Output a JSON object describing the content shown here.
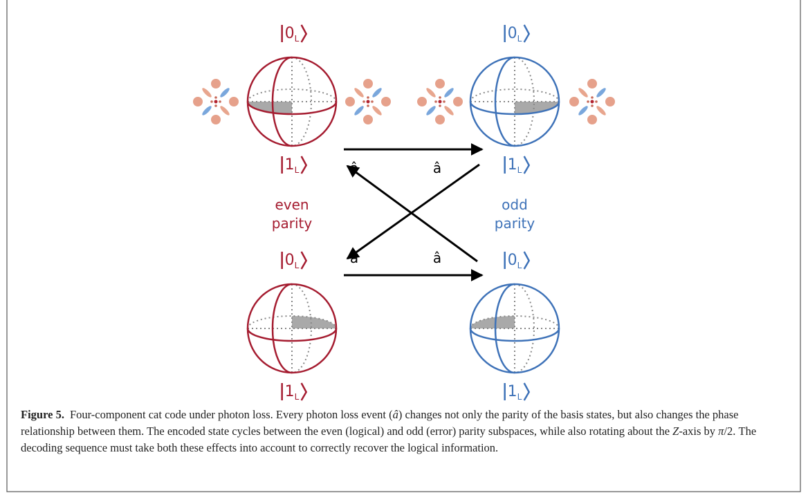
{
  "spheres": [
    {
      "top": {
        "ket": "0",
        "sub": "L"
      },
      "bottom": {
        "ket": "1",
        "sub": "L"
      }
    },
    {
      "top": {
        "ket": "0",
        "sub": "L"
      },
      "bottom": {
        "ket": "1",
        "sub": "L"
      }
    },
    {
      "top": {
        "ket": "0",
        "sub": "L"
      },
      "bottom": {
        "ket": "1",
        "sub": "L"
      }
    },
    {
      "top": {
        "ket": "0",
        "sub": "L"
      },
      "bottom": {
        "ket": "1",
        "sub": "L"
      }
    }
  ],
  "operators": [
    "â",
    "â",
    "â",
    "â"
  ],
  "parity": [
    {
      "lines": [
        "even",
        "parity"
      ]
    },
    {
      "lines": [
        "odd",
        "parity"
      ]
    }
  ],
  "caption": {
    "label": "Figure 5.",
    "parts": [
      {
        "text": "Four-component cat code under photon loss. Every photon loss event (",
        "italic": false
      },
      {
        "text": "â",
        "italic": true
      },
      {
        "text": ") changes not only the parity of the basis states, but also changes the phase relationship between them. The encoded state cycles between the even (logical) and odd (error) parity subspaces, while also rotating about the ",
        "italic": false
      },
      {
        "text": "Z",
        "italic": true
      },
      {
        "text": "-axis by ",
        "italic": false
      },
      {
        "text": "π",
        "italic": true
      },
      {
        "text": "/2. The decoding sequence must take both these effects into account to correctly recover the logical information.",
        "italic": false
      }
    ]
  }
}
